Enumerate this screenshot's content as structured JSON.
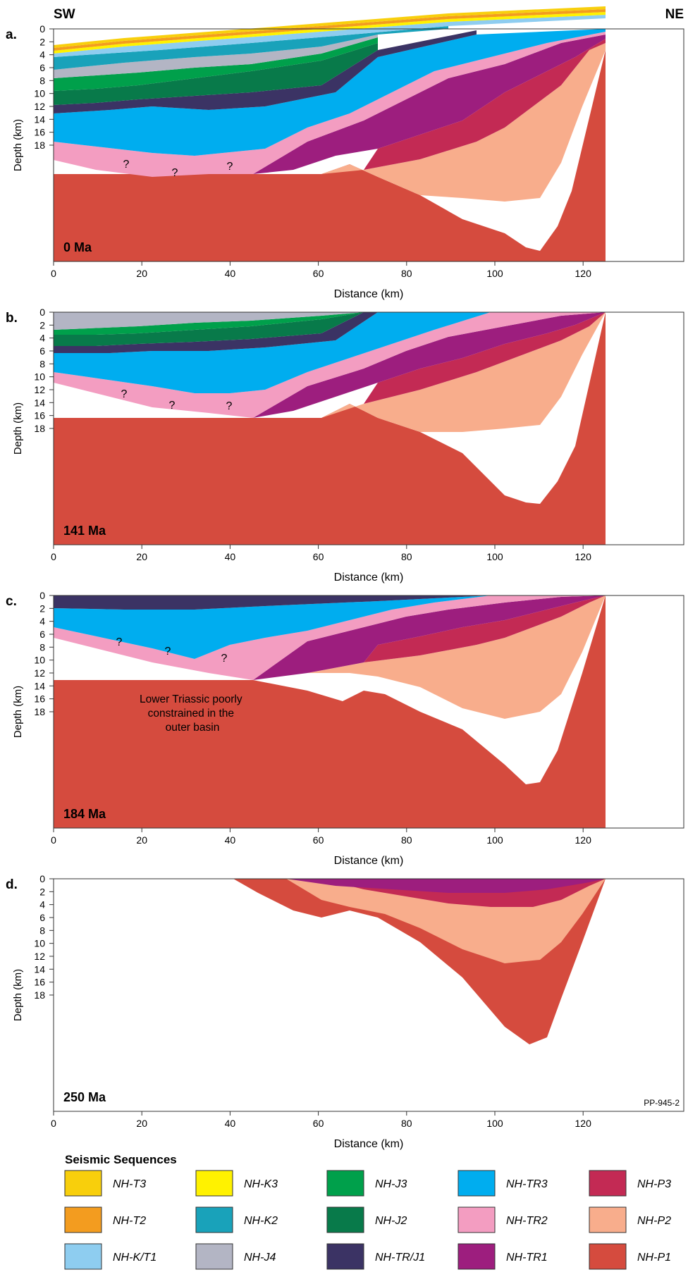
{
  "header": {
    "left": "SW",
    "right": "NE"
  },
  "axes": {
    "x_label": "Distance (km)",
    "y_label": "Depth (km)",
    "x_ticks": [
      "0",
      "20",
      "40",
      "60",
      "80",
      "100",
      "120"
    ],
    "y_ticks": [
      "0",
      "2",
      "4",
      "6",
      "8",
      "10",
      "12",
      "14",
      "16",
      "18"
    ],
    "x_range_km": [
      0,
      125
    ],
    "y_range_km": [
      0,
      18
    ]
  },
  "panels": [
    {
      "letter": "a.",
      "age": "0 Ma",
      "question_marks": [
        "?",
        "?",
        "?"
      ]
    },
    {
      "letter": "b.",
      "age": "141 Ma",
      "question_marks": [
        "?",
        "?",
        "?"
      ]
    },
    {
      "letter": "c.",
      "age": "184 Ma",
      "question_marks": [
        "?",
        "?",
        "?"
      ],
      "note": [
        "Lower Triassic poorly",
        "constrained in the",
        "outer basin"
      ]
    },
    {
      "letter": "d.",
      "age": "250 Ma",
      "figure_id": "PP-945-2"
    }
  ],
  "legend": {
    "title": "Seismic Sequences",
    "items": [
      {
        "label": "NH-T3",
        "color": "#f8cf0c"
      },
      {
        "label": "NH-K3",
        "color": "#fff200"
      },
      {
        "label": "NH-J3",
        "color": "#00a04b"
      },
      {
        "label": "NH-TR3",
        "color": "#00adef"
      },
      {
        "label": "NH-P3",
        "color": "#c32a54"
      },
      {
        "label": "NH-T2",
        "color": "#f39c1f"
      },
      {
        "label": "NH-K2",
        "color": "#19a2ba"
      },
      {
        "label": "NH-J2",
        "color": "#087a4a"
      },
      {
        "label": "NH-TR2",
        "color": "#f39dc1"
      },
      {
        "label": "NH-P2",
        "color": "#f8ad8c"
      },
      {
        "label": "NH-K/T1",
        "color": "#8ecdf0"
      },
      {
        "label": "NH-J4",
        "color": "#b3b5c4"
      },
      {
        "label": "NH-TR/J1",
        "color": "#3b3364"
      },
      {
        "label": "NH-TR1",
        "color": "#9d1e7e"
      },
      {
        "label": "NH-P1",
        "color": "#d54b3e"
      }
    ]
  }
}
